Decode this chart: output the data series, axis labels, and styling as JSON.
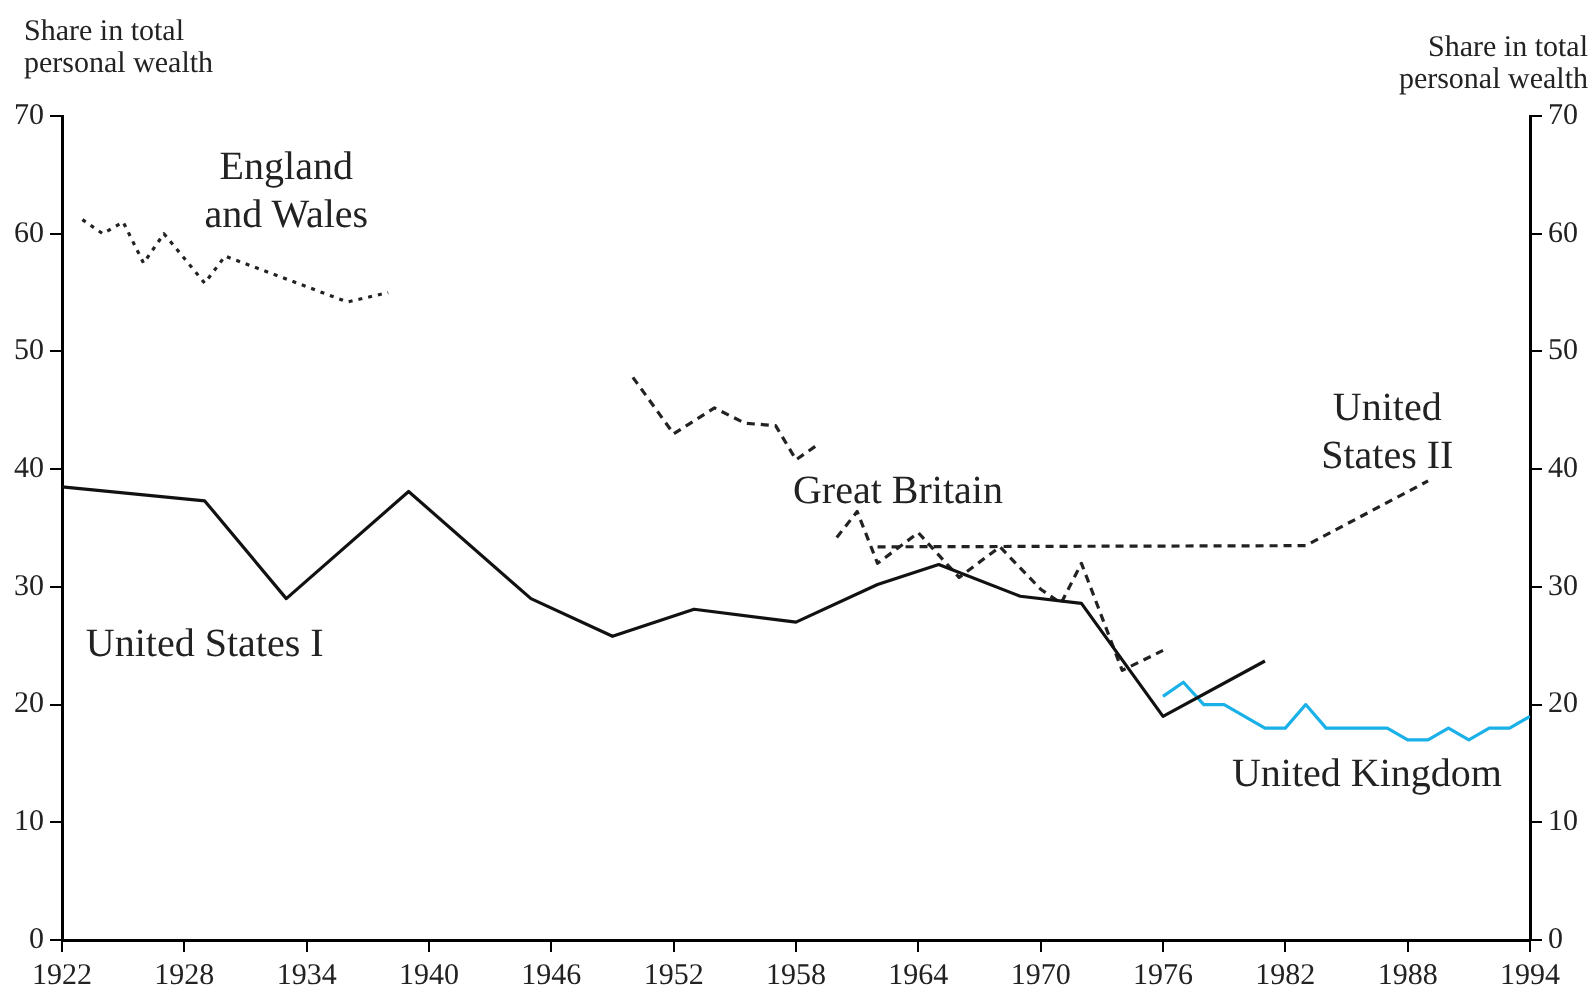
{
  "chart_data": {
    "type": "line",
    "ylabel": "Share in total personal wealth",
    "y2label": "Share in total personal wealth",
    "xlim": [
      1922,
      1994
    ],
    "xticks": [
      1922,
      1928,
      1934,
      1940,
      1946,
      1952,
      1958,
      1964,
      1970,
      1976,
      1982,
      1988,
      1994
    ],
    "ylim": [
      0,
      70
    ],
    "yticks": [
      0,
      10,
      20,
      30,
      40,
      50,
      60,
      70
    ],
    "y2lim": [
      0,
      70
    ],
    "y2ticks": [
      0,
      10,
      20,
      30,
      40,
      50,
      60,
      70
    ],
    "grid": false,
    "legend": false,
    "marker": "none",
    "series": [
      {
        "name": "England and Wales",
        "color": "#222222",
        "line_style": "dotted",
        "x": [
          1923,
          1924,
          1925,
          1926,
          1927,
          1929,
          1930,
          1936,
          1938
        ],
        "values": [
          61.2,
          60,
          61,
          57.5,
          60,
          55.8,
          58.1,
          54.2,
          55
        ]
      },
      {
        "name": "United States I",
        "color": "#111111",
        "line_style": "solid",
        "x": [
          1922,
          1929,
          1933,
          1939,
          1945,
          1949,
          1953,
          1958,
          1962,
          1965,
          1969,
          1972,
          1976,
          1981
        ],
        "values": [
          38.5,
          37.3,
          29,
          38.1,
          29,
          25.8,
          28.1,
          27,
          30.2,
          31.9,
          29.2,
          28.6,
          19,
          23.7
        ]
      },
      {
        "name": "Great Britain",
        "color": "#222222",
        "line_style": "dashed",
        "x": [
          1950,
          1952,
          1954,
          1955.5,
          1957,
          1958,
          1959,
          1959.5,
          1960,
          1961,
          1962,
          1964,
          1966,
          1968,
          1970,
          1971,
          1972,
          1974,
          1976
        ],
        "values": [
          47.8,
          43,
          45.2,
          43.9,
          43.7,
          40.8,
          42,
          null,
          34.2,
          36.4,
          32,
          34.6,
          30.8,
          33.4,
          29.8,
          28.6,
          32,
          22.9,
          24.6
        ]
      },
      {
        "name": "United States II",
        "color": "#222222",
        "line_style": "dashed",
        "x": [
          1962,
          1983,
          1989
        ],
        "values": [
          33.4,
          33.5,
          39
        ]
      },
      {
        "name": "United Kingdom",
        "color": "#1ab0e8",
        "line_style": "solid",
        "x": [
          1976,
          1977,
          1978,
          1979,
          1981,
          1982,
          1983,
          1984,
          1987,
          1988,
          1989,
          1990,
          1991,
          1992,
          1993,
          1994
        ],
        "values": [
          20.7,
          21.9,
          20,
          20,
          18,
          18,
          20,
          18,
          18,
          17,
          17,
          18,
          17,
          18,
          18,
          19
        ]
      }
    ]
  }
}
